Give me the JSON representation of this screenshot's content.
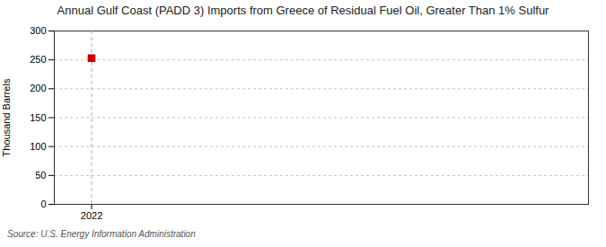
{
  "chart_data": {
    "type": "scatter",
    "title": "Annual Gulf Coast (PADD 3) Imports from Greece of Residual Fuel Oil, Greater Than 1% Sulfur",
    "y_label": "Thousand Barrels",
    "source": "Source: U.S. Energy Information Administration",
    "x": [
      2022
    ],
    "values": [
      253
    ],
    "color": "#cc0000",
    "marker": "square",
    "vline": 2022,
    "xlim": [
      2021.4,
      2030.0
    ],
    "xticks": [
      2022
    ],
    "ylim": [
      0,
      300
    ],
    "yticks": [
      0,
      50,
      100,
      150,
      200,
      250,
      300
    ],
    "grid": true
  }
}
